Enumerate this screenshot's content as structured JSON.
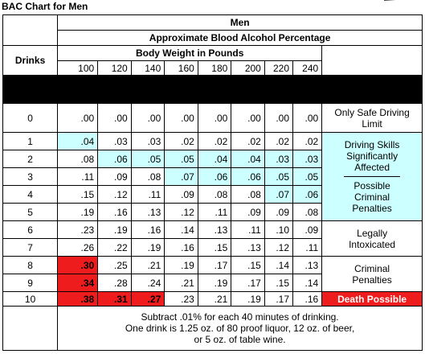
{
  "title": "BAC Chart for Men",
  "header": {
    "men": "Men",
    "approx": "Approximate Blood Alcohol Percentage",
    "drinks": "Drinks",
    "weight": "Body Weight in Pounds"
  },
  "weights": [
    "100",
    "120",
    "140",
    "160",
    "180",
    "200",
    "220",
    "240"
  ],
  "rows": [
    {
      "drinks": "0",
      "values": [
        ".00",
        ".00",
        ".00",
        ".00",
        ".00",
        ".00",
        ".00",
        ".00"
      ]
    },
    {
      "drinks": "1",
      "values": [
        ".04",
        ".03",
        ".03",
        ".02",
        ".02",
        ".02",
        ".02",
        ".02"
      ]
    },
    {
      "drinks": "2",
      "values": [
        ".08",
        ".06",
        ".05",
        ".05",
        ".04",
        ".04",
        ".03",
        ".03"
      ]
    },
    {
      "drinks": "3",
      "values": [
        ".11",
        ".09",
        ".08",
        ".07",
        ".06",
        ".06",
        ".05",
        ".05"
      ]
    },
    {
      "drinks": "4",
      "values": [
        ".15",
        ".12",
        ".11",
        ".09",
        ".08",
        ".08",
        ".07",
        ".06"
      ]
    },
    {
      "drinks": "5",
      "values": [
        ".19",
        ".16",
        ".13",
        ".12",
        ".11",
        ".09",
        ".09",
        ".08"
      ]
    },
    {
      "drinks": "6",
      "values": [
        ".23",
        ".19",
        ".16",
        ".14",
        ".13",
        ".11",
        ".10",
        ".09"
      ]
    },
    {
      "drinks": "7",
      "values": [
        ".26",
        ".22",
        ".19",
        ".16",
        ".15",
        ".13",
        ".12",
        ".11"
      ]
    },
    {
      "drinks": "8",
      "values": [
        ".30",
        ".25",
        ".21",
        ".19",
        ".17",
        ".15",
        ".14",
        ".13"
      ]
    },
    {
      "drinks": "9",
      "values": [
        ".34",
        ".28",
        ".24",
        ".21",
        ".19",
        ".17",
        ".15",
        ".14"
      ]
    },
    {
      "drinks": "10",
      "values": [
        ".38",
        ".31",
        ".27",
        ".23",
        ".21",
        ".19",
        ".17",
        ".16"
      ]
    }
  ],
  "categories": {
    "safe": "Only Safe Driving Limit",
    "impaired": "Driving Skills Significantly Affected",
    "possible_criminal": "Possible Criminal Penalties",
    "legally_intoxicated": "Legally Intoxicated",
    "criminal": "Criminal Penalties",
    "death": "Death Possible"
  },
  "footer": {
    "line1": "Subtract .01% for each 40 minutes of drinking.",
    "line2": "One drink is 1.25 oz. of 80 proof liquor, 12 oz. of beer,",
    "line3": "or 5 oz. of table wine."
  },
  "colors": {
    "cyan": "#ccffff",
    "red": "#ee1c1c",
    "black": "#000000"
  }
}
